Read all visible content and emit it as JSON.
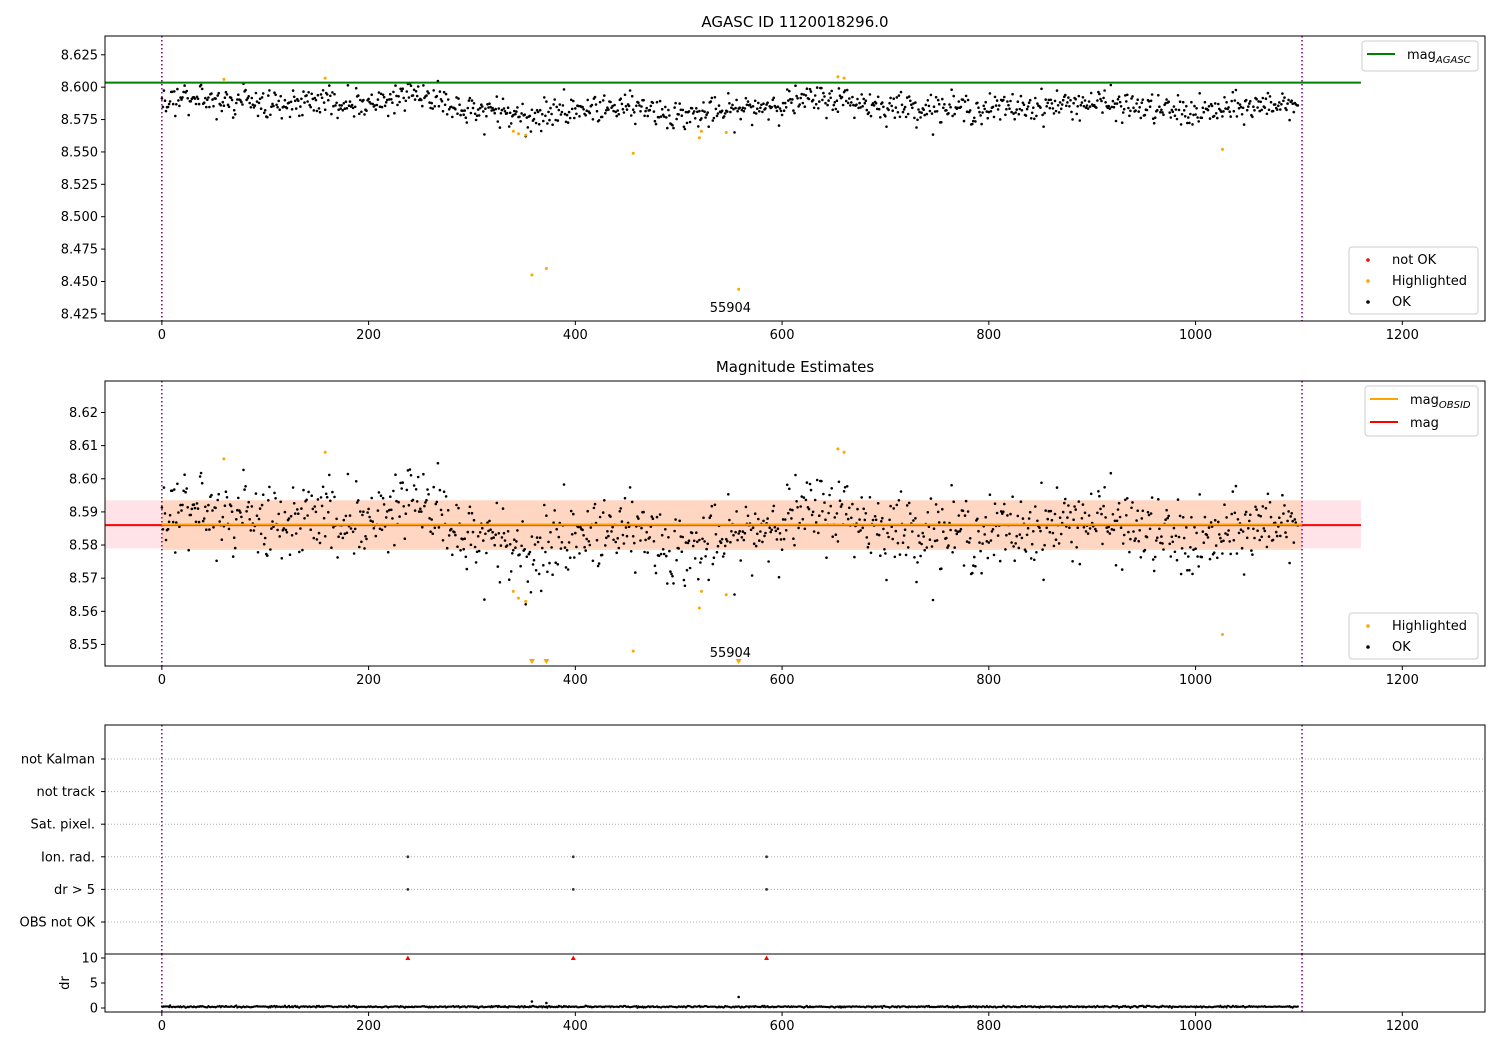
{
  "colors": {
    "ok": "#000000",
    "highlighted": "#ffa500",
    "not_ok": "#ff0000",
    "agasc_line": "#008000",
    "mag_line": "#ff0000",
    "obsid_line": "#ffa500",
    "band_fill": "#ffc0cb",
    "band_fill2": "#ffd0b0",
    "obs_boundary": "#800080",
    "grid": "#b0b0b0"
  },
  "chart_data": [
    {
      "type": "scatter",
      "title": "AGASC ID 1120018296.0",
      "xlim": [
        -55,
        1280
      ],
      "ylim": [
        8.4195,
        8.6395
      ],
      "x_ticks": [
        0,
        200,
        400,
        600,
        800,
        1000,
        1200
      ],
      "x_tick_labels": [
        "0",
        "200",
        "400",
        "600",
        "800",
        "1000",
        "1200"
      ],
      "y_ticks": [
        8.425,
        8.45,
        8.475,
        8.5,
        8.525,
        8.55,
        8.575,
        8.6,
        8.625
      ],
      "y_tick_labels": [
        "8.425",
        "8.450",
        "8.475",
        "8.500",
        "8.525",
        "8.550",
        "8.575",
        "8.600",
        "8.625"
      ],
      "obs_boundaries": [
        0,
        1103
      ],
      "obsid_label": "55904",
      "obsid_label_x": 550,
      "hlines": [
        {
          "name": "mag_AGASC",
          "y": 8.6035,
          "x_range": [
            -55,
            1160
          ]
        }
      ],
      "ok_trend": {
        "x": [
          0,
          100,
          200,
          250,
          300,
          350,
          450,
          500,
          550,
          600,
          650,
          700,
          800,
          900,
          1000,
          1100
        ],
        "y": [
          8.592,
          8.588,
          8.588,
          8.595,
          8.583,
          8.578,
          8.587,
          8.578,
          8.581,
          8.588,
          8.591,
          8.585,
          8.583,
          8.588,
          8.58,
          8.589
        ],
        "scatter": 0.0055,
        "n": 1100
      },
      "highlighted": {
        "x": [
          60,
          158,
          340,
          345,
          352,
          358,
          372,
          456,
          520,
          522,
          546,
          558,
          654,
          660,
          1026
        ],
        "y": [
          8.606,
          8.607,
          8.566,
          8.564,
          8.563,
          8.455,
          8.46,
          8.549,
          8.561,
          8.566,
          8.565,
          8.444,
          8.608,
          8.607,
          8.552
        ]
      },
      "legend_upper": [
        "mag_AGASC"
      ],
      "legend_lower": [
        "not OK",
        "Highlighted",
        "OK"
      ]
    },
    {
      "type": "scatter",
      "title": "Magnitude Estimates",
      "xlim": [
        -55,
        1280
      ],
      "ylim": [
        8.5435,
        8.6295
      ],
      "x_ticks": [
        0,
        200,
        400,
        600,
        800,
        1000,
        1200
      ],
      "x_tick_labels": [
        "0",
        "200",
        "400",
        "600",
        "800",
        "1000",
        "1200"
      ],
      "y_ticks": [
        8.55,
        8.56,
        8.57,
        8.58,
        8.59,
        8.6,
        8.61,
        8.62
      ],
      "y_tick_labels": [
        "8.55",
        "8.56",
        "8.57",
        "8.58",
        "8.59",
        "8.60",
        "8.61",
        "8.62"
      ],
      "obs_boundaries": [
        0,
        1103
      ],
      "obsid_label": "55904",
      "obsid_label_x": 550,
      "mag": {
        "y": 8.586,
        "band": [
          8.579,
          8.5935
        ],
        "x_range": [
          -55,
          1160
        ]
      },
      "mag_obsid": {
        "y": 8.5862,
        "band": [
          8.5785,
          8.5935
        ],
        "x_range": [
          0,
          1103
        ]
      },
      "ok_trend": {
        "x": [
          0,
          100,
          200,
          250,
          300,
          350,
          450,
          500,
          550,
          600,
          650,
          700,
          800,
          900,
          1000,
          1100
        ],
        "y": [
          8.592,
          8.588,
          8.588,
          8.595,
          8.583,
          8.578,
          8.587,
          8.578,
          8.581,
          8.588,
          8.591,
          8.585,
          8.583,
          8.588,
          8.58,
          8.589
        ],
        "scatter": 0.0055,
        "n": 1100
      },
      "highlighted": {
        "x": [
          60,
          158,
          340,
          345,
          352,
          456,
          520,
          522,
          546,
          654,
          660,
          1026
        ],
        "y": [
          8.606,
          8.608,
          8.566,
          8.564,
          8.563,
          8.548,
          8.561,
          8.566,
          8.565,
          8.609,
          8.608,
          8.553
        ]
      },
      "clipped_low": {
        "x": [
          358,
          372,
          558
        ]
      },
      "legend_upper": [
        "mag_OBSID",
        "mag"
      ],
      "legend_lower": [
        "Highlighted",
        "OK"
      ]
    },
    {
      "type": "scatter",
      "xlim": [
        -55,
        1280
      ],
      "flag_rows": [
        "not Kalman",
        "not track",
        "Sat. pixel.",
        "Ion. rad.",
        "dr > 5",
        "OBS not OK"
      ],
      "flag_points": {
        "Ion. rad.": [
          238,
          398,
          585
        ],
        "dr > 5": [
          238,
          398,
          585
        ]
      },
      "obs_boundaries": [
        0,
        1103
      ]
    },
    {
      "type": "scatter",
      "xlim": [
        -55,
        1280
      ],
      "ylim": [
        -0.8,
        10.8
      ],
      "x_ticks": [
        0,
        200,
        400,
        600,
        800,
        1000,
        1200
      ],
      "x_tick_labels": [
        "0",
        "200",
        "400",
        "600",
        "800",
        "1000",
        "1200"
      ],
      "y_ticks": [
        0,
        5,
        10
      ],
      "y_tick_labels": [
        "0",
        "5",
        "10"
      ],
      "ylabel": "dr",
      "obs_boundaries": [
        0,
        1103
      ],
      "dr_level": 0.25,
      "dr_spikes": {
        "x": [
          358,
          372,
          558
        ],
        "y": [
          1.3,
          1.0,
          2.2
        ]
      },
      "dr_capped": {
        "x": [
          238,
          398,
          585
        ],
        "y": [
          10,
          10,
          10
        ]
      },
      "n": 1100
    }
  ],
  "legend_labels": {
    "mag_agasc": "mag",
    "mag_agasc_sub": "AGASC",
    "not_ok": "not OK",
    "highlighted": "Highlighted",
    "ok": "OK",
    "mag_obsid": "mag",
    "mag_obsid_sub": "OBSID",
    "mag": "mag",
    "highlighted2": "Highlighted",
    "ok2": "OK"
  }
}
